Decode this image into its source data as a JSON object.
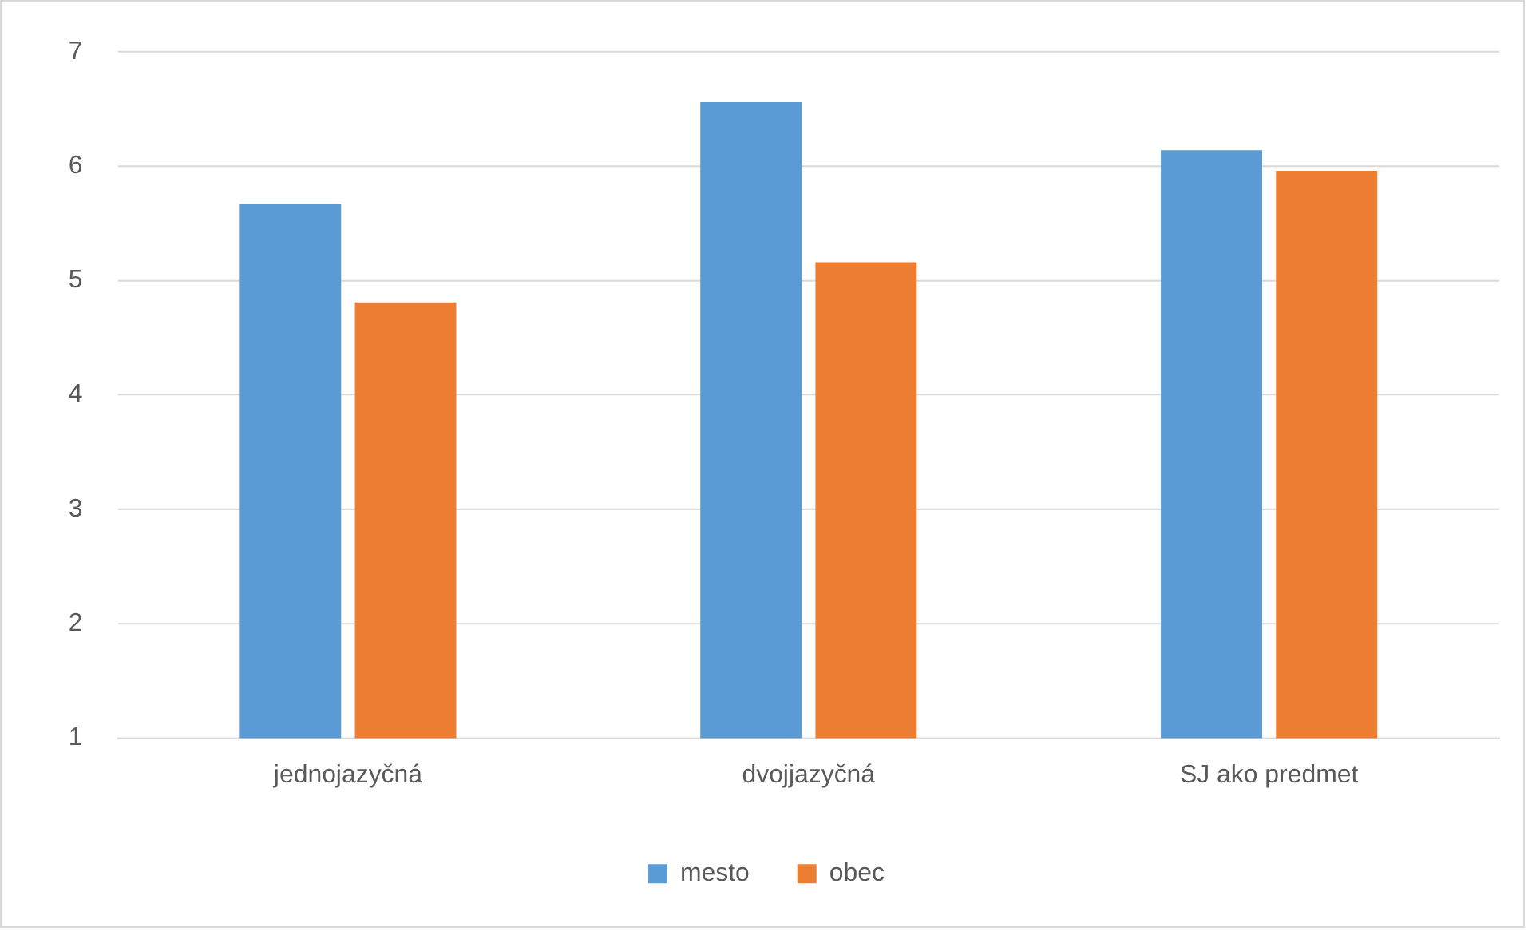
{
  "chart_data": {
    "type": "bar",
    "categories": [
      "jednojazyčná",
      "dvojjazyčná",
      "SJ ako predmet"
    ],
    "series": [
      {
        "name": "mesto",
        "color": "#5b9bd5",
        "values": [
          5.67,
          6.56,
          6.14
        ]
      },
      {
        "name": "obec",
        "color": "#ed7d31",
        "values": [
          4.81,
          5.16,
          5.96
        ]
      }
    ],
    "ylim": [
      1,
      7
    ],
    "yticks": [
      1,
      2,
      3,
      4,
      5,
      6,
      7
    ],
    "grid": "y",
    "legend": "bottom"
  }
}
